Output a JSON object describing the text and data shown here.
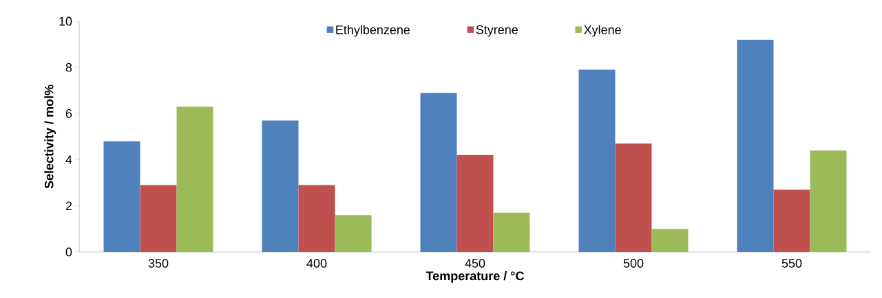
{
  "chart_data": {
    "type": "bar",
    "xlabel": "Temperature / °C",
    "ylabel": "Selectivity / mol%",
    "categories": [
      "350",
      "400",
      "450",
      "500",
      "550"
    ],
    "series": [
      {
        "name": "Ethylbenzene",
        "color": "#4f81bd",
        "values": [
          4.8,
          5.7,
          6.9,
          7.9,
          9.2
        ]
      },
      {
        "name": "Styrene",
        "color": "#c0504d",
        "values": [
          2.9,
          2.9,
          4.2,
          4.7,
          2.7
        ]
      },
      {
        "name": "Xylene",
        "color": "#9bbb59",
        "values": [
          6.3,
          1.6,
          1.7,
          1.0,
          4.4
        ]
      }
    ],
    "ylim": [
      0,
      10
    ],
    "yticks": [
      0,
      2,
      4,
      6,
      8,
      10
    ],
    "grid": false,
    "legend": "top"
  }
}
